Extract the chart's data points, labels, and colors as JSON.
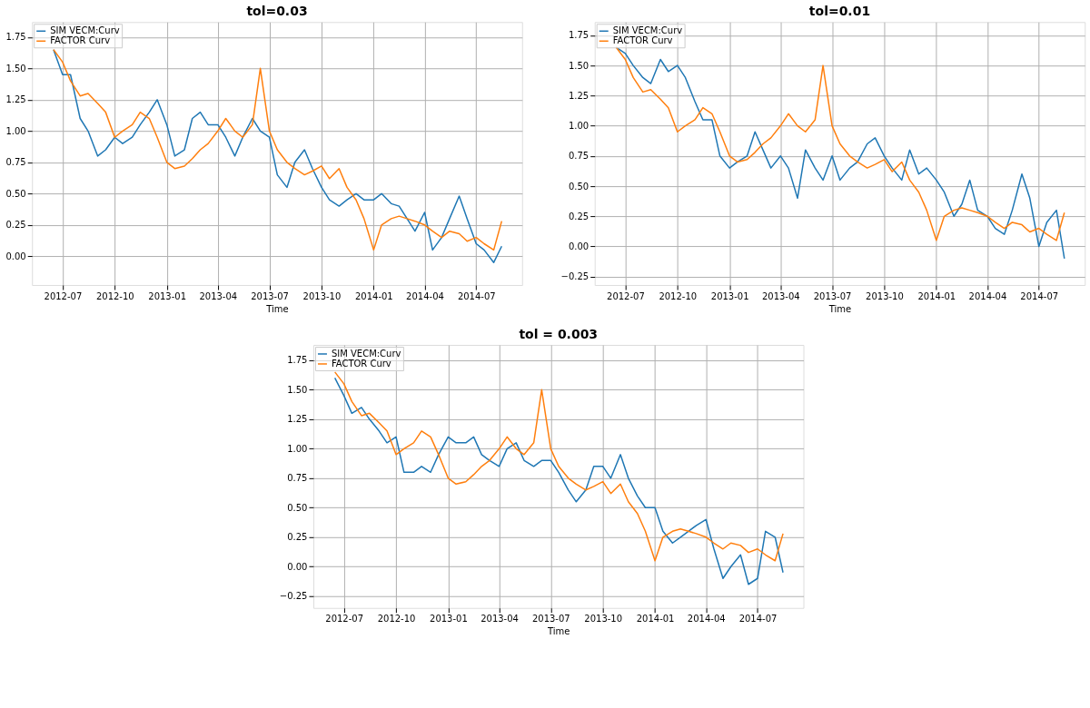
{
  "chart_data": [
    {
      "type": "line",
      "title": "tol=0.03",
      "xlabel": "Time",
      "grid": true,
      "legend": "top left",
      "x": [
        "2012-06-15",
        "2012-07-01",
        "2012-07-15",
        "2012-08-01",
        "2012-08-15",
        "2012-09-01",
        "2012-09-15",
        "2012-10-01",
        "2012-10-15",
        "2012-11-01",
        "2012-11-15",
        "2012-12-01",
        "2012-12-15",
        "2013-01-01",
        "2013-01-15",
        "2013-02-01",
        "2013-02-15",
        "2013-03-01",
        "2013-03-15",
        "2013-04-01",
        "2013-04-15",
        "2013-05-01",
        "2013-05-15",
        "2013-06-01",
        "2013-06-15",
        "2013-07-01",
        "2013-07-15",
        "2013-08-01",
        "2013-08-15",
        "2013-09-01",
        "2013-09-15",
        "2013-10-01",
        "2013-10-15",
        "2013-11-01",
        "2013-11-15",
        "2013-12-01",
        "2013-12-15",
        "2014-01-01",
        "2014-01-15",
        "2014-02-01",
        "2014-02-15",
        "2014-03-01",
        "2014-03-15",
        "2014-04-01",
        "2014-04-15",
        "2014-05-01",
        "2014-05-15",
        "2014-06-01",
        "2014-06-15",
        "2014-07-01",
        "2014-07-15",
        "2014-08-01",
        "2014-08-15"
      ],
      "xlim": [
        "2012-05-08",
        "2014-09-20"
      ],
      "xticks": [
        "2012-07",
        "2012-10",
        "2013-01",
        "2013-04",
        "2013-07",
        "2013-10",
        "2014-01",
        "2014-04",
        "2014-07"
      ],
      "ylim": [
        -0.23,
        1.87
      ],
      "yticks": [
        {
          "value": 0,
          "label": "0.00"
        },
        {
          "value": 0.25,
          "label": "0.25"
        },
        {
          "value": 0.5,
          "label": "0.50"
        },
        {
          "value": 0.75,
          "label": "0.75"
        },
        {
          "value": 1,
          "label": "1.00"
        },
        {
          "value": 1.25,
          "label": "1.25"
        },
        {
          "value": 1.5,
          "label": "1.50"
        },
        {
          "value": 1.75,
          "label": "1.75"
        }
      ],
      "series": [
        {
          "name": "SIM VECM:Curv",
          "color": "#1f77b4",
          "values": [
            1.65,
            1.45,
            1.45,
            1.1,
            1.0,
            0.8,
            0.85,
            0.95,
            0.9,
            0.95,
            1.05,
            1.15,
            1.25,
            1.05,
            0.8,
            0.85,
            1.1,
            1.15,
            1.05,
            1.05,
            0.95,
            0.8,
            0.95,
            1.1,
            1.0,
            0.95,
            0.65,
            0.55,
            0.75,
            0.85,
            0.7,
            0.55,
            0.45,
            0.4,
            0.45,
            0.5,
            0.45,
            0.45,
            0.5,
            0.42,
            0.4,
            0.3,
            0.2,
            0.35,
            0.05,
            0.15,
            0.3,
            0.48,
            0.3,
            0.1,
            0.05,
            -0.05,
            0.08
          ]
        },
        {
          "name": "FACTOR Curv",
          "color": "#ff7f0e",
          "values": [
            1.65,
            1.55,
            1.4,
            1.28,
            1.3,
            1.22,
            1.15,
            0.95,
            1.0,
            1.05,
            1.15,
            1.1,
            0.95,
            0.75,
            0.7,
            0.72,
            0.78,
            0.85,
            0.9,
            1.0,
            1.1,
            1.0,
            0.95,
            1.05,
            1.5,
            1.0,
            0.85,
            0.75,
            0.7,
            0.65,
            0.68,
            0.72,
            0.62,
            0.7,
            0.55,
            0.45,
            0.3,
            0.05,
            0.25,
            0.3,
            0.32,
            0.3,
            0.28,
            0.25,
            0.2,
            0.15,
            0.2,
            0.18,
            0.12,
            0.15,
            0.1,
            0.05,
            0.28
          ]
        }
      ]
    },
    {
      "type": "line",
      "title": "tol=0.01",
      "xlabel": "Time",
      "grid": true,
      "legend": "top left",
      "x": [
        "2012-06-15",
        "2012-07-01",
        "2012-07-15",
        "2012-08-01",
        "2012-08-15",
        "2012-09-01",
        "2012-09-15",
        "2012-10-01",
        "2012-10-15",
        "2012-11-01",
        "2012-11-15",
        "2012-12-01",
        "2012-12-15",
        "2013-01-01",
        "2013-01-15",
        "2013-02-01",
        "2013-02-15",
        "2013-03-01",
        "2013-03-15",
        "2013-04-01",
        "2013-04-15",
        "2013-05-01",
        "2013-05-15",
        "2013-06-01",
        "2013-06-15",
        "2013-07-01",
        "2013-07-15",
        "2013-08-01",
        "2013-08-15",
        "2013-09-01",
        "2013-09-15",
        "2013-10-01",
        "2013-10-15",
        "2013-11-01",
        "2013-11-15",
        "2013-12-01",
        "2013-12-15",
        "2014-01-01",
        "2014-01-15",
        "2014-02-01",
        "2014-02-15",
        "2014-03-01",
        "2014-03-15",
        "2014-04-01",
        "2014-04-15",
        "2014-05-01",
        "2014-05-15",
        "2014-06-01",
        "2014-06-15",
        "2014-07-01",
        "2014-07-15",
        "2014-08-01",
        "2014-08-15"
      ],
      "xlim": [
        "2012-05-08",
        "2014-09-20"
      ],
      "xticks": [
        "2012-07",
        "2012-10",
        "2013-01",
        "2013-04",
        "2013-07",
        "2013-10",
        "2014-01",
        "2014-04",
        "2014-07"
      ],
      "ylim": [
        -0.32,
        1.86
      ],
      "yticks": [
        {
          "value": -0.25,
          "label": "−0.25"
        },
        {
          "value": 0,
          "label": "0.00"
        },
        {
          "value": 0.25,
          "label": "0.25"
        },
        {
          "value": 0.5,
          "label": "0.50"
        },
        {
          "value": 0.75,
          "label": "0.75"
        },
        {
          "value": 1,
          "label": "1.00"
        },
        {
          "value": 1.25,
          "label": "1.25"
        },
        {
          "value": 1.5,
          "label": "1.50"
        },
        {
          "value": 1.75,
          "label": "1.75"
        }
      ],
      "series": [
        {
          "name": "SIM VECM:Curv",
          "color": "#1f77b4",
          "values": [
            1.65,
            1.6,
            1.5,
            1.4,
            1.35,
            1.55,
            1.45,
            1.5,
            1.4,
            1.2,
            1.05,
            1.05,
            0.75,
            0.65,
            0.7,
            0.75,
            0.95,
            0.8,
            0.65,
            0.75,
            0.65,
            0.4,
            0.8,
            0.65,
            0.55,
            0.75,
            0.55,
            0.65,
            0.7,
            0.85,
            0.9,
            0.75,
            0.65,
            0.55,
            0.8,
            0.6,
            0.65,
            0.55,
            0.45,
            0.25,
            0.35,
            0.55,
            0.3,
            0.25,
            0.15,
            0.1,
            0.3,
            0.6,
            0.4,
            0.0,
            0.2,
            0.3,
            -0.1
          ]
        },
        {
          "name": "FACTOR Curv",
          "color": "#ff7f0e",
          "values": [
            1.65,
            1.55,
            1.4,
            1.28,
            1.3,
            1.22,
            1.15,
            0.95,
            1.0,
            1.05,
            1.15,
            1.1,
            0.95,
            0.75,
            0.7,
            0.72,
            0.78,
            0.85,
            0.9,
            1.0,
            1.1,
            1.0,
            0.95,
            1.05,
            1.5,
            1.0,
            0.85,
            0.75,
            0.7,
            0.65,
            0.68,
            0.72,
            0.62,
            0.7,
            0.55,
            0.45,
            0.3,
            0.05,
            0.25,
            0.3,
            0.32,
            0.3,
            0.28,
            0.25,
            0.2,
            0.15,
            0.2,
            0.18,
            0.12,
            0.15,
            0.1,
            0.05,
            0.28
          ]
        }
      ]
    },
    {
      "type": "line",
      "title": "tol = 0.003",
      "xlabel": "Time",
      "grid": true,
      "legend": "top left",
      "x": [
        "2012-06-15",
        "2012-07-01",
        "2012-07-15",
        "2012-08-01",
        "2012-08-15",
        "2012-09-01",
        "2012-09-15",
        "2012-10-01",
        "2012-10-15",
        "2012-11-01",
        "2012-11-15",
        "2012-12-01",
        "2012-12-15",
        "2013-01-01",
        "2013-01-15",
        "2013-02-01",
        "2013-02-15",
        "2013-03-01",
        "2013-03-15",
        "2013-04-01",
        "2013-04-15",
        "2013-05-01",
        "2013-05-15",
        "2013-06-01",
        "2013-06-15",
        "2013-07-01",
        "2013-07-15",
        "2013-08-01",
        "2013-08-15",
        "2013-09-01",
        "2013-09-15",
        "2013-10-01",
        "2013-10-15",
        "2013-11-01",
        "2013-11-15",
        "2013-12-01",
        "2013-12-15",
        "2014-01-01",
        "2014-01-15",
        "2014-02-01",
        "2014-02-15",
        "2014-03-01",
        "2014-03-15",
        "2014-04-01",
        "2014-04-15",
        "2014-05-01",
        "2014-05-15",
        "2014-06-01",
        "2014-06-15",
        "2014-07-01",
        "2014-07-15",
        "2014-08-01",
        "2014-08-15"
      ],
      "xlim": [
        "2012-05-08",
        "2014-09-20"
      ],
      "xticks": [
        "2012-07",
        "2012-10",
        "2013-01",
        "2013-04",
        "2013-07",
        "2013-10",
        "2014-01",
        "2014-04",
        "2014-07"
      ],
      "ylim": [
        -0.35,
        1.88
      ],
      "yticks": [
        {
          "value": -0.25,
          "label": "−0.25"
        },
        {
          "value": 0,
          "label": "0.00"
        },
        {
          "value": 0.25,
          "label": "0.25"
        },
        {
          "value": 0.5,
          "label": "0.50"
        },
        {
          "value": 0.75,
          "label": "0.75"
        },
        {
          "value": 1,
          "label": "1.00"
        },
        {
          "value": 1.25,
          "label": "1.25"
        },
        {
          "value": 1.5,
          "label": "1.50"
        },
        {
          "value": 1.75,
          "label": "1.75"
        }
      ],
      "series": [
        {
          "name": "SIM VECM:Curv",
          "color": "#1f77b4",
          "values": [
            1.6,
            1.45,
            1.3,
            1.35,
            1.25,
            1.15,
            1.05,
            1.1,
            0.8,
            0.8,
            0.85,
            0.8,
            0.95,
            1.1,
            1.05,
            1.05,
            1.1,
            0.95,
            0.9,
            0.85,
            1.0,
            1.05,
            0.9,
            0.85,
            0.9,
            0.9,
            0.8,
            0.65,
            0.55,
            0.65,
            0.85,
            0.85,
            0.75,
            0.95,
            0.75,
            0.6,
            0.5,
            0.5,
            0.3,
            0.2,
            0.25,
            0.3,
            0.35,
            0.4,
            0.15,
            -0.1,
            0.0,
            0.1,
            -0.15,
            -0.1,
            0.3,
            0.25,
            -0.05
          ]
        },
        {
          "name": "FACTOR Curv",
          "color": "#ff7f0e",
          "values": [
            1.65,
            1.55,
            1.4,
            1.28,
            1.3,
            1.22,
            1.15,
            0.95,
            1.0,
            1.05,
            1.15,
            1.1,
            0.95,
            0.75,
            0.7,
            0.72,
            0.78,
            0.85,
            0.9,
            1.0,
            1.1,
            1.0,
            0.95,
            1.05,
            1.5,
            1.0,
            0.85,
            0.75,
            0.7,
            0.65,
            0.68,
            0.72,
            0.62,
            0.7,
            0.55,
            0.45,
            0.3,
            0.05,
            0.25,
            0.3,
            0.32,
            0.3,
            0.28,
            0.25,
            0.2,
            0.15,
            0.2,
            0.18,
            0.12,
            0.15,
            0.1,
            0.05,
            0.28
          ]
        }
      ]
    }
  ]
}
